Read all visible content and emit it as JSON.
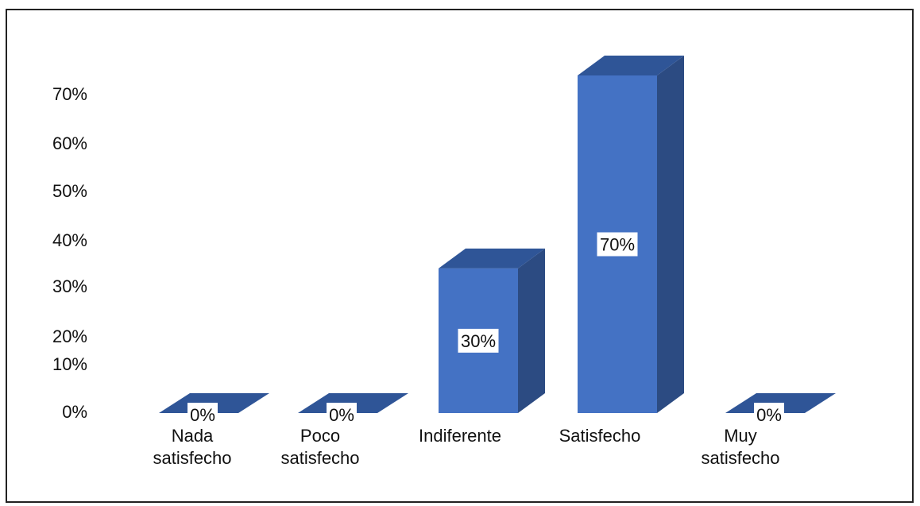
{
  "chart_data": {
    "type": "bar",
    "style": "3d-column",
    "categories": [
      "Nada\nsatisfecho",
      "Poco\nsatisfecho",
      "Indiferente",
      "Satisfecho",
      "Muy\nsatisfecho"
    ],
    "values": [
      0,
      0,
      30,
      70,
      0
    ],
    "data_labels": [
      "0%",
      "0%",
      "30%",
      "70%",
      "0%"
    ],
    "y_ticks": [
      "0%",
      "10%",
      "20%",
      "30%",
      "40%",
      "50%",
      "60%",
      "70%"
    ],
    "ylim": [
      0,
      70
    ],
    "title": "",
    "xlabel": "",
    "ylabel": "",
    "grid": false,
    "legend": "none",
    "colors": {
      "front": "#4472c4",
      "side": "#2c4b82",
      "top": "#2f5597"
    }
  }
}
